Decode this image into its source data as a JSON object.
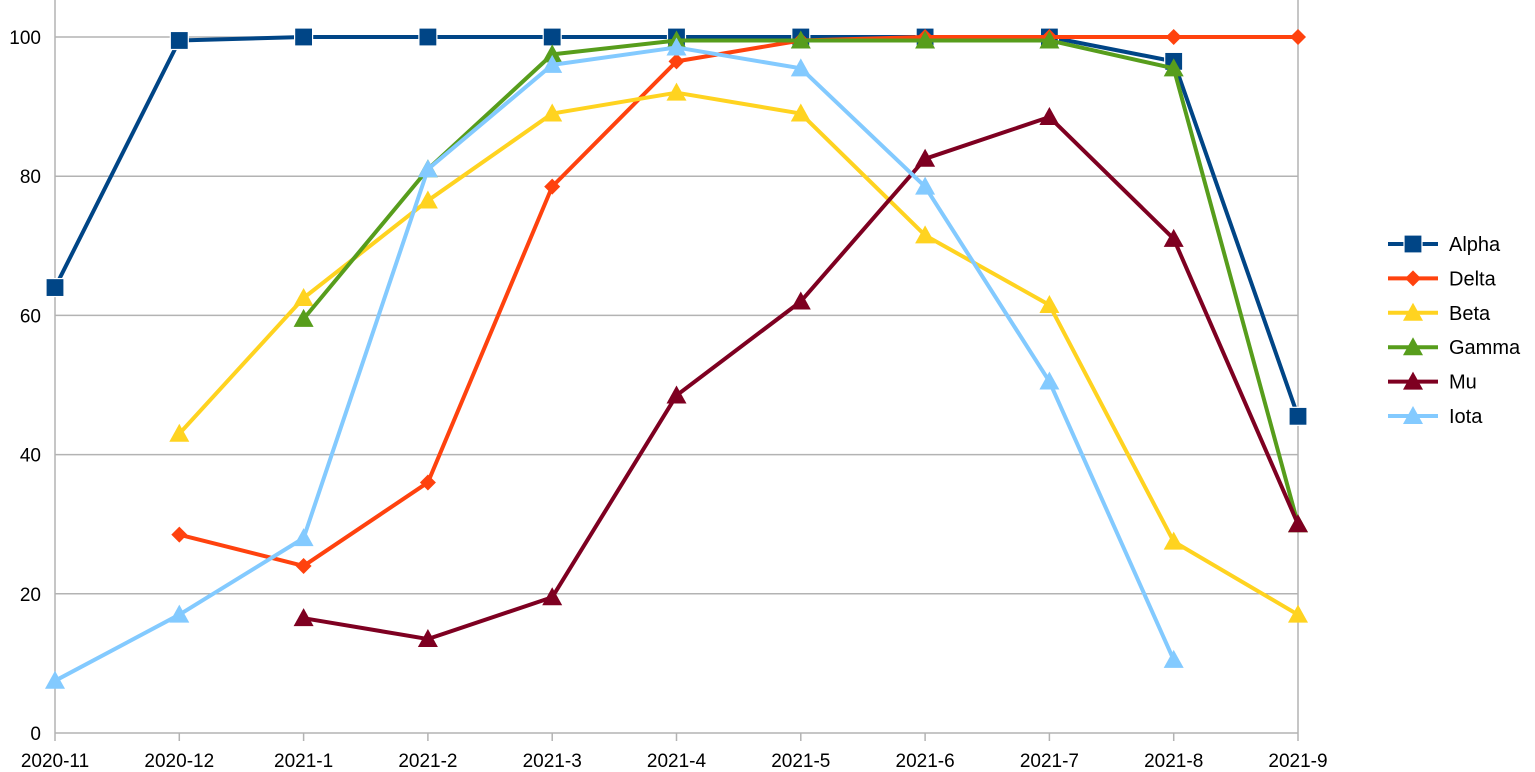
{
  "chart_data": {
    "type": "line",
    "title": "",
    "xlabel": "",
    "ylabel": "",
    "categories": [
      "2020-11",
      "2020-12",
      "2021-1",
      "2021-2",
      "2021-3",
      "2021-4",
      "2021-5",
      "2021-6",
      "2021-7",
      "2021-8",
      "2021-9"
    ],
    "ylim": [
      0,
      100
    ],
    "yticks": [
      0,
      20,
      40,
      60,
      80,
      100
    ],
    "grid": true,
    "legend_position": "right",
    "series": [
      {
        "name": "Alpha",
        "color": "#004586",
        "marker": "square",
        "values": [
          64,
          99.5,
          100,
          100,
          100,
          100,
          100,
          100,
          100,
          96.5,
          45.5
        ]
      },
      {
        "name": "Delta",
        "color": "#ff420e",
        "marker": "diamond",
        "values": [
          null,
          28.5,
          24,
          36,
          78.5,
          96.5,
          99.5,
          100,
          100,
          100,
          100
        ]
      },
      {
        "name": "Beta",
        "color": "#ffd320",
        "marker": "triangle",
        "values": [
          null,
          43,
          62.5,
          76.5,
          89,
          92,
          89,
          71.5,
          61.5,
          27.5,
          17
        ]
      },
      {
        "name": "Gamma",
        "color": "#579d1c",
        "marker": "triangle",
        "values": [
          null,
          null,
          59.5,
          81,
          97.5,
          99.5,
          99.5,
          99.5,
          99.5,
          95.5,
          30
        ]
      },
      {
        "name": "Mu",
        "color": "#7e0021",
        "marker": "triangle",
        "values": [
          null,
          null,
          16.5,
          13.5,
          19.5,
          48.5,
          62,
          82.5,
          88.5,
          71,
          30
        ]
      },
      {
        "name": "Iota",
        "color": "#83caff",
        "marker": "triangle",
        "values": [
          7.5,
          17,
          28,
          81,
          96,
          98.5,
          95.5,
          78.5,
          50.5,
          10.5,
          null
        ]
      }
    ]
  }
}
